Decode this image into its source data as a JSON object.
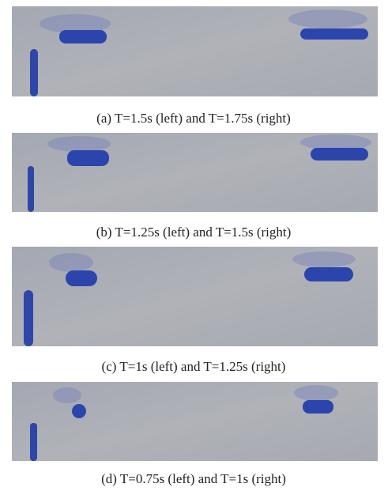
{
  "figure": {
    "subfigures": [
      {
        "caption": "(a) T=1.5s (left) and T=1.75s (right)"
      },
      {
        "caption": "(b) T=1.25s (left) and T=1.5s (right)"
      },
      {
        "caption": "(c) T=1s (left) and T=1.25s (right)"
      },
      {
        "caption": "(d) T=0.75s (left) and T=1s (right)"
      }
    ]
  }
}
